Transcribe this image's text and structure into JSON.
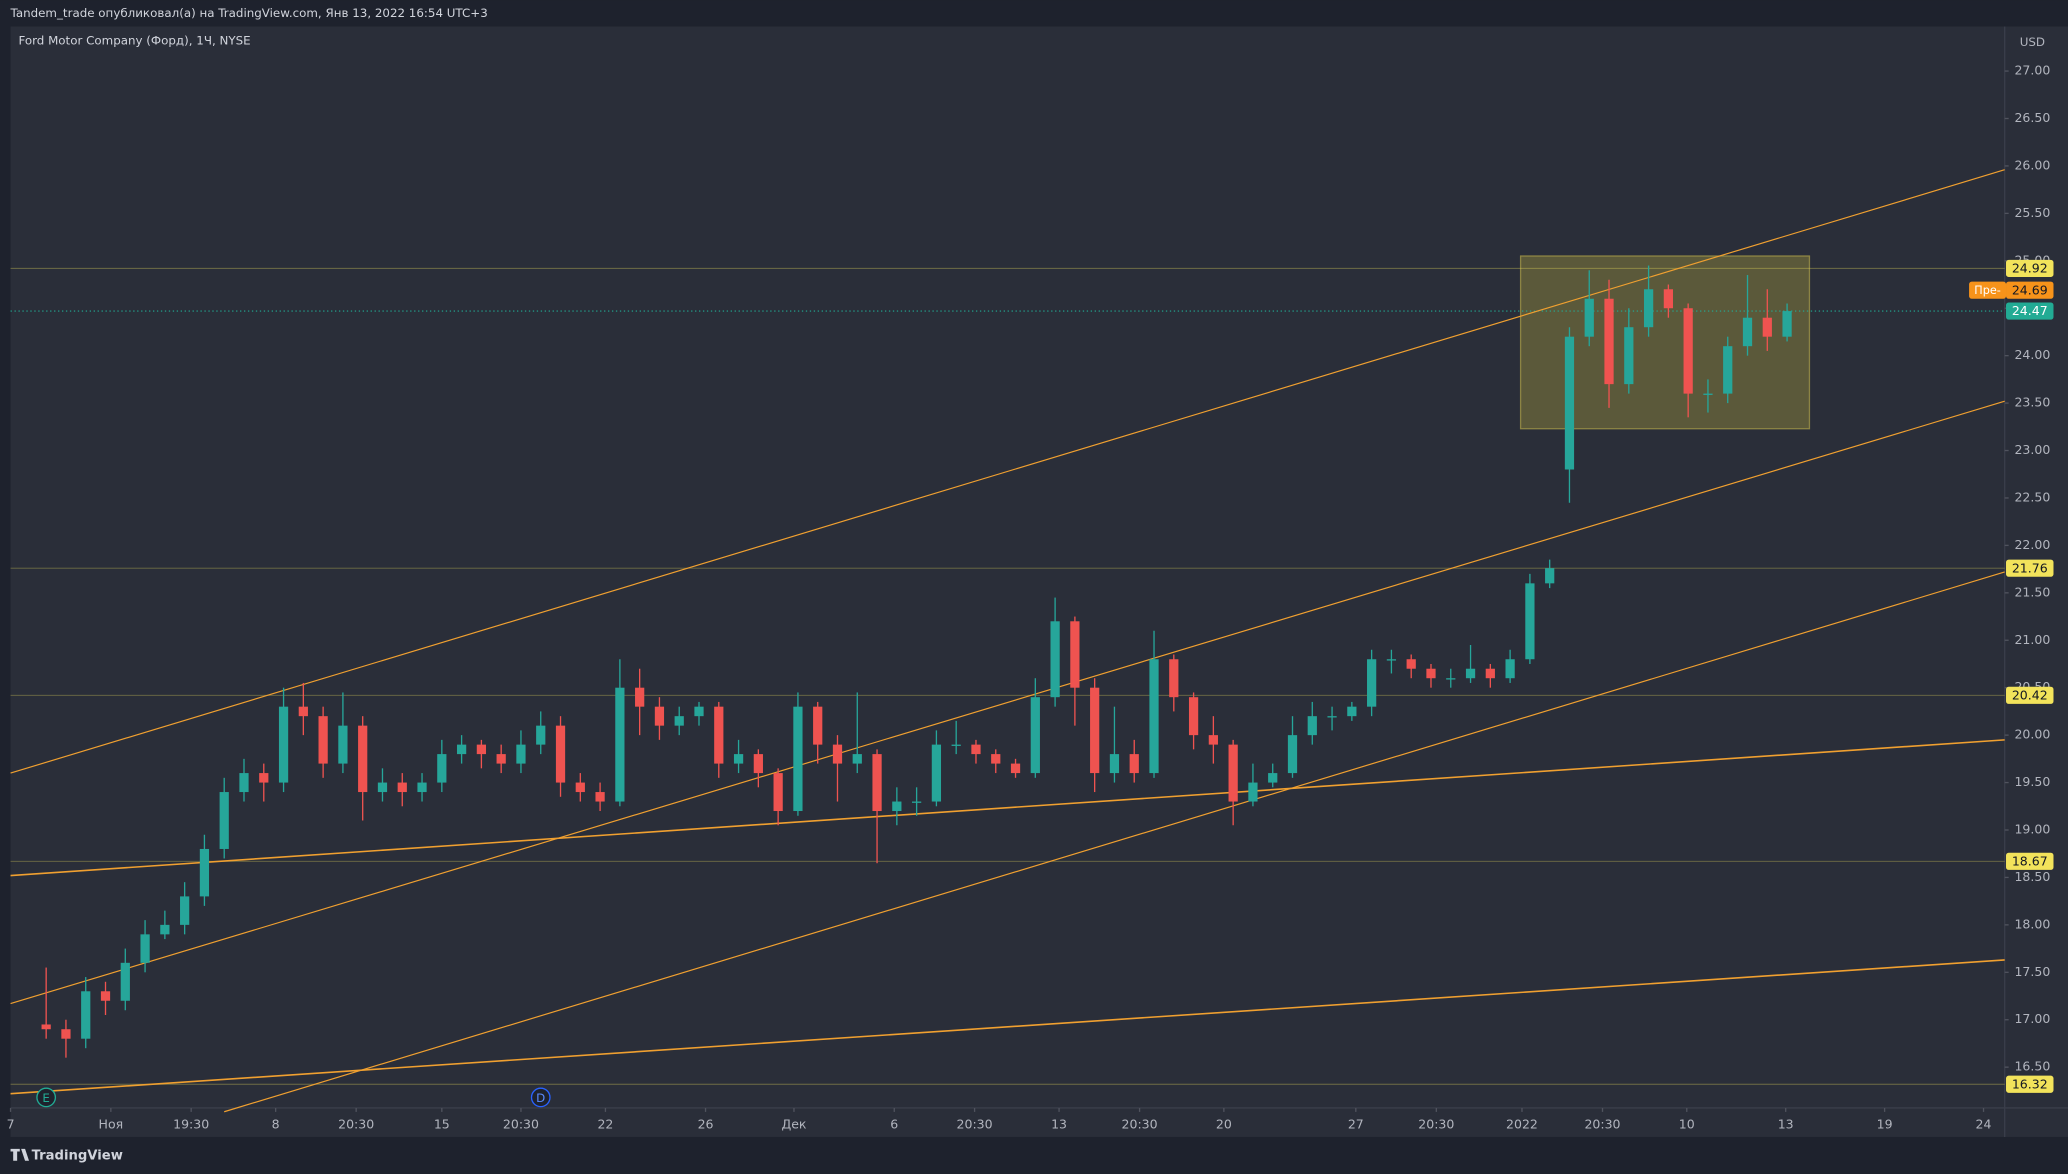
{
  "header": "Tandem_trade опубликовал(а) на TradingView.com, Янв 13, 2022 16:54 UTC+3",
  "footer": "TradingView",
  "chart_data": {
    "type": "candlestick",
    "title": "Ford Motor Company (Форд), 1Ч, NYSE",
    "currency": "USD",
    "up_color": "#26a69a",
    "down_color": "#ef5350",
    "trendline_color": "#f0a030",
    "level_color": "#f2e35b",
    "last_color": "#22ab94",
    "premarket_color": "#f7931a",
    "grid": false,
    "xlim": [
      -1.8,
      99
    ],
    "ylim": [
      16.07,
      27.47
    ],
    "xticks": [
      {
        "value": -1.8,
        "label": "7"
      },
      {
        "value": 3.27,
        "label": "Ноя"
      },
      {
        "value": 7.33,
        "label": "19:30"
      },
      {
        "value": 11.6,
        "label": "8"
      },
      {
        "value": 15.67,
        "label": "20:30"
      },
      {
        "value": 20,
        "label": "15"
      },
      {
        "value": 24,
        "label": "20:30"
      },
      {
        "value": 28.27,
        "label": "22"
      },
      {
        "value": 33.33,
        "label": "26"
      },
      {
        "value": 37.8,
        "label": "Дек"
      },
      {
        "value": 42.87,
        "label": "6"
      },
      {
        "value": 46.93,
        "label": "20:30"
      },
      {
        "value": 51.2,
        "label": "13"
      },
      {
        "value": 55.27,
        "label": "20:30"
      },
      {
        "value": 59.53,
        "label": "20"
      },
      {
        "value": 66.2,
        "label": "27"
      },
      {
        "value": 70.27,
        "label": "20:30"
      },
      {
        "value": 74.6,
        "label": "2022"
      },
      {
        "value": 78.67,
        "label": "20:30"
      },
      {
        "value": 82.93,
        "label": "10"
      },
      {
        "value": 87.93,
        "label": "13"
      },
      {
        "value": 92.93,
        "label": "19"
      },
      {
        "value": 97.93,
        "label": "24"
      }
    ],
    "yticks": [
      {
        "value": 16.5,
        "label": "16.50"
      },
      {
        "value": 17,
        "label": "17.00"
      },
      {
        "value": 17.5,
        "label": "17.50"
      },
      {
        "value": 18,
        "label": "18.00"
      },
      {
        "value": 18.5,
        "label": "18.50"
      },
      {
        "value": 19,
        "label": "19.00"
      },
      {
        "value": 19.5,
        "label": "19.50"
      },
      {
        "value": 20,
        "label": "20.00"
      },
      {
        "value": 20.5,
        "label": "20.50"
      },
      {
        "value": 21,
        "label": "21.00"
      },
      {
        "value": 21.5,
        "label": "21.50"
      },
      {
        "value": 22,
        "label": "22.00"
      },
      {
        "value": 22.5,
        "label": "22.50"
      },
      {
        "value": 23,
        "label": "23.00"
      },
      {
        "value": 23.5,
        "label": "23.50"
      },
      {
        "value": 24,
        "label": "24.00"
      },
      {
        "value": 24.5,
        "label": "24.50"
      },
      {
        "value": 25,
        "label": "25.00"
      },
      {
        "value": 25.5,
        "label": "25.50"
      },
      {
        "value": 26,
        "label": "26.00"
      },
      {
        "value": 26.5,
        "label": "26.50"
      },
      {
        "value": 27,
        "label": "27.00"
      }
    ],
    "x": [
      0,
      1,
      2,
      3,
      4,
      5,
      6,
      7,
      8,
      9,
      10,
      11,
      12,
      13,
      14,
      15,
      16,
      17,
      18,
      19,
      20,
      21,
      22,
      23,
      24,
      25,
      26,
      27,
      28,
      29,
      30,
      31,
      32,
      33,
      34,
      35,
      36,
      37,
      38,
      39,
      40,
      41,
      42,
      43,
      44,
      45,
      46,
      47,
      48,
      49,
      50,
      51,
      52,
      53,
      54,
      55,
      56,
      57,
      58,
      59,
      60,
      61,
      62,
      63,
      64,
      65,
      66,
      67,
      68,
      69,
      70,
      71,
      72,
      73,
      74,
      75,
      76,
      77,
      78,
      79,
      80,
      81,
      82,
      83,
      84,
      85,
      86,
      87,
      88
    ],
    "open": [
      16.95,
      16.9,
      16.8,
      17.3,
      17.2,
      17.6,
      17.9,
      18.0,
      18.3,
      18.8,
      19.4,
      19.6,
      19.5,
      20.3,
      20.2,
      19.7,
      20.1,
      19.4,
      19.5,
      19.4,
      19.5,
      19.8,
      19.9,
      19.8,
      19.7,
      19.9,
      20.1,
      19.5,
      19.4,
      19.3,
      20.5,
      20.3,
      20.1,
      20.2,
      20.3,
      19.7,
      19.8,
      19.6,
      19.2,
      20.3,
      19.9,
      19.7,
      19.8,
      19.2,
      19.3,
      19.3,
      19.9,
      19.9,
      19.8,
      19.7,
      19.6,
      20.4,
      21.2,
      20.5,
      19.6,
      19.8,
      19.6,
      20.8,
      20.4,
      20.0,
      19.9,
      19.3,
      19.5,
      19.6,
      20.0,
      20.2,
      20.2,
      20.3,
      20.8,
      20.8,
      20.7,
      20.6,
      20.6,
      20.7,
      20.6,
      20.8,
      21.6,
      22.8,
      24.2,
      24.6,
      23.7,
      24.3,
      24.7,
      24.5,
      23.6,
      23.6,
      24.1,
      24.4,
      24.2
    ],
    "high": [
      17.55,
      17.0,
      17.45,
      17.4,
      17.75,
      18.05,
      18.15,
      18.45,
      18.95,
      19.55,
      19.75,
      19.7,
      20.5,
      20.55,
      20.3,
      20.45,
      20.2,
      19.65,
      19.6,
      19.6,
      19.95,
      20.0,
      19.95,
      19.9,
      20.05,
      20.25,
      20.2,
      19.6,
      19.5,
      20.8,
      20.7,
      20.4,
      20.3,
      20.35,
      20.35,
      19.95,
      19.85,
      19.65,
      20.45,
      20.35,
      20.0,
      20.45,
      19.85,
      19.45,
      19.45,
      20.05,
      20.15,
      19.95,
      19.85,
      19.75,
      20.6,
      21.45,
      21.25,
      20.6,
      20.3,
      19.95,
      21.1,
      20.85,
      20.45,
      20.2,
      19.95,
      19.7,
      19.7,
      20.2,
      20.35,
      20.3,
      20.35,
      20.9,
      20.9,
      20.85,
      20.75,
      20.7,
      20.95,
      20.75,
      20.9,
      21.7,
      21.85,
      24.3,
      24.9,
      24.8,
      24.5,
      24.95,
      24.75,
      24.55,
      23.75,
      24.2,
      24.85,
      24.7,
      24.55
    ],
    "low": [
      16.8,
      16.6,
      16.7,
      17.05,
      17.1,
      17.5,
      17.85,
      17.9,
      18.2,
      18.7,
      19.3,
      19.3,
      19.4,
      20.0,
      19.55,
      19.6,
      19.1,
      19.3,
      19.25,
      19.3,
      19.4,
      19.7,
      19.65,
      19.6,
      19.6,
      19.8,
      19.35,
      19.3,
      19.2,
      19.25,
      20.0,
      19.95,
      20.0,
      20.1,
      19.55,
      19.6,
      19.45,
      19.05,
      19.15,
      19.7,
      19.3,
      19.6,
      18.65,
      19.05,
      19.15,
      19.25,
      19.8,
      19.7,
      19.6,
      19.55,
      19.55,
      20.3,
      20.1,
      19.4,
      19.5,
      19.5,
      19.55,
      20.25,
      19.85,
      19.7,
      19.05,
      19.25,
      19.45,
      19.55,
      19.9,
      20.05,
      20.15,
      20.2,
      20.65,
      20.6,
      20.5,
      20.5,
      20.55,
      20.5,
      20.55,
      20.75,
      21.55,
      22.45,
      24.1,
      23.45,
      23.6,
      24.2,
      24.4,
      23.35,
      23.4,
      23.5,
      24.0,
      24.05,
      24.15
    ],
    "close": [
      16.9,
      16.8,
      17.3,
      17.2,
      17.6,
      17.9,
      18.0,
      18.3,
      18.8,
      19.4,
      19.6,
      19.5,
      20.3,
      20.2,
      19.7,
      20.1,
      19.4,
      19.5,
      19.4,
      19.5,
      19.8,
      19.9,
      19.8,
      19.7,
      19.9,
      20.1,
      19.5,
      19.4,
      19.3,
      20.5,
      20.3,
      20.1,
      20.2,
      20.3,
      19.7,
      19.8,
      19.6,
      19.2,
      20.3,
      19.9,
      19.7,
      19.8,
      19.2,
      19.3,
      19.3,
      19.9,
      19.9,
      19.8,
      19.7,
      19.6,
      20.4,
      21.2,
      20.5,
      19.6,
      19.8,
      19.6,
      20.8,
      20.4,
      20.0,
      19.9,
      19.3,
      19.5,
      19.6,
      20.0,
      20.2,
      20.2,
      20.3,
      20.8,
      20.8,
      20.7,
      20.6,
      20.6,
      20.7,
      20.6,
      20.8,
      21.6,
      21.76,
      24.2,
      24.6,
      23.7,
      24.3,
      24.7,
      24.5,
      23.6,
      23.6,
      24.1,
      24.4,
      24.2,
      24.47
    ],
    "trendlines": [
      {
        "x": [
          -1.8,
          99
        ],
        "y": [
          19.6,
          25.96
        ]
      },
      {
        "x": [
          -1.8,
          99
        ],
        "y": [
          17.17,
          23.52
        ]
      },
      {
        "x": [
          9,
          99
        ],
        "y": [
          16.03,
          21.72
        ]
      },
      {
        "x": [
          -1.8,
          99
        ],
        "y": [
          18.52,
          19.95
        ]
      },
      {
        "x": [
          -1.8,
          99
        ],
        "y": [
          16.22,
          17.63
        ]
      }
    ],
    "range_box": {
      "x": [
        74.53,
        89.13
      ],
      "y": [
        23.23,
        25.05
      ]
    },
    "levels": [
      24.92,
      21.76,
      20.42,
      18.67,
      16.32
    ],
    "premarket": {
      "label": "Пре-",
      "value": 24.69
    },
    "last_price": 24.47,
    "events": [
      {
        "label": "E",
        "x": 0
      },
      {
        "label": "D",
        "x": 25
      }
    ]
  }
}
